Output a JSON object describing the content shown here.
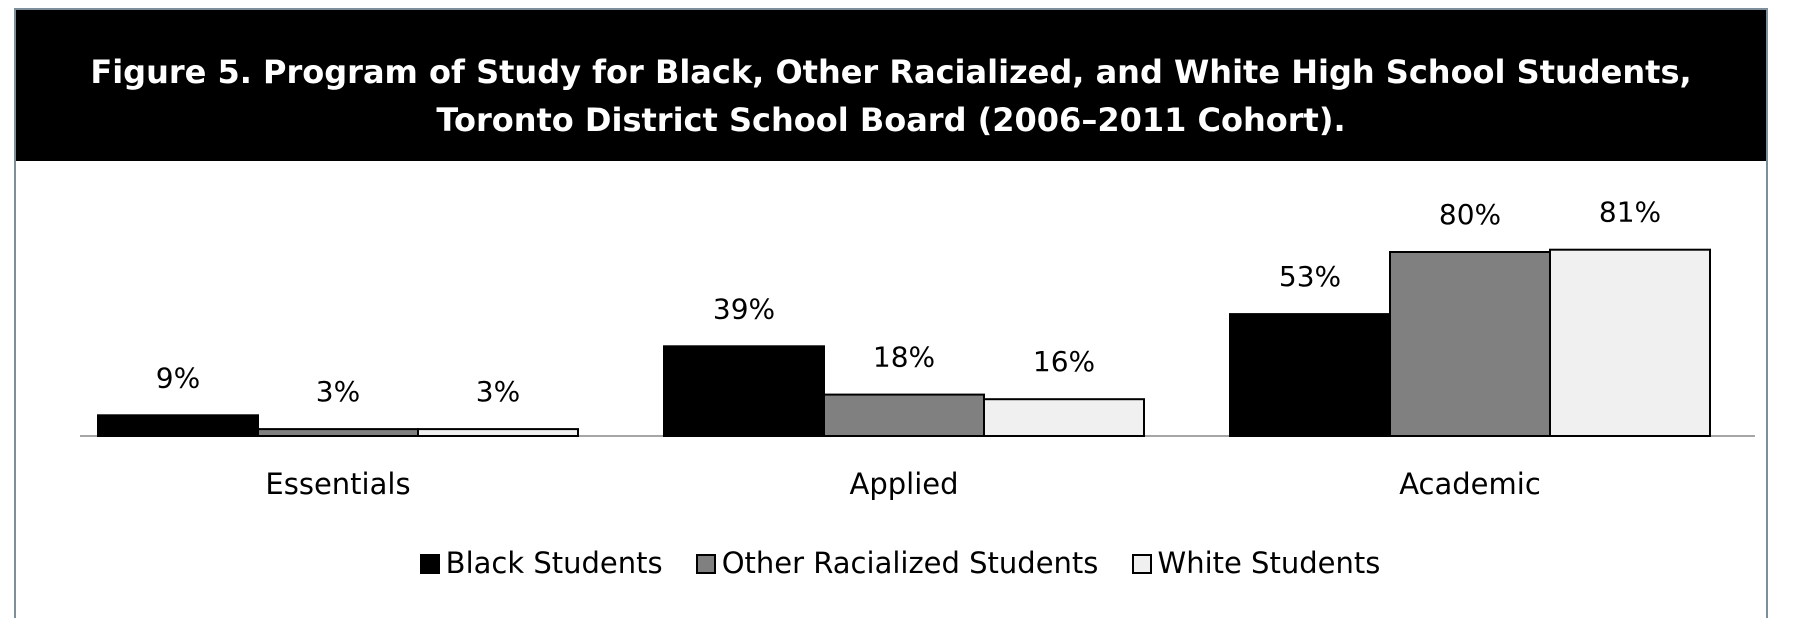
{
  "chart_data": {
    "type": "bar",
    "title_lines": [
      "Figure 5. Program of Study for Black, Other Racialized, and White High School Students,",
      "Toronto District School Board (2006–2011 Cohort)."
    ],
    "categories": [
      "Essentials",
      "Applied",
      "Academic"
    ],
    "series": [
      {
        "name": "Black Students",
        "values": [
          9,
          39,
          53
        ],
        "labels": [
          "9%",
          "39%",
          "53%"
        ],
        "color": "#000000"
      },
      {
        "name": "Other Racialized Students",
        "values": [
          3,
          18,
          80
        ],
        "labels": [
          "3%",
          "18%",
          "80%"
        ],
        "color": "#808080"
      },
      {
        "name": "White Students",
        "values": [
          3,
          16,
          81
        ],
        "labels": [
          "3%",
          "16%",
          "81%"
        ],
        "color": "#f0f0f0"
      }
    ],
    "unit": "%",
    "grid": false,
    "legend_position": "bottom"
  }
}
